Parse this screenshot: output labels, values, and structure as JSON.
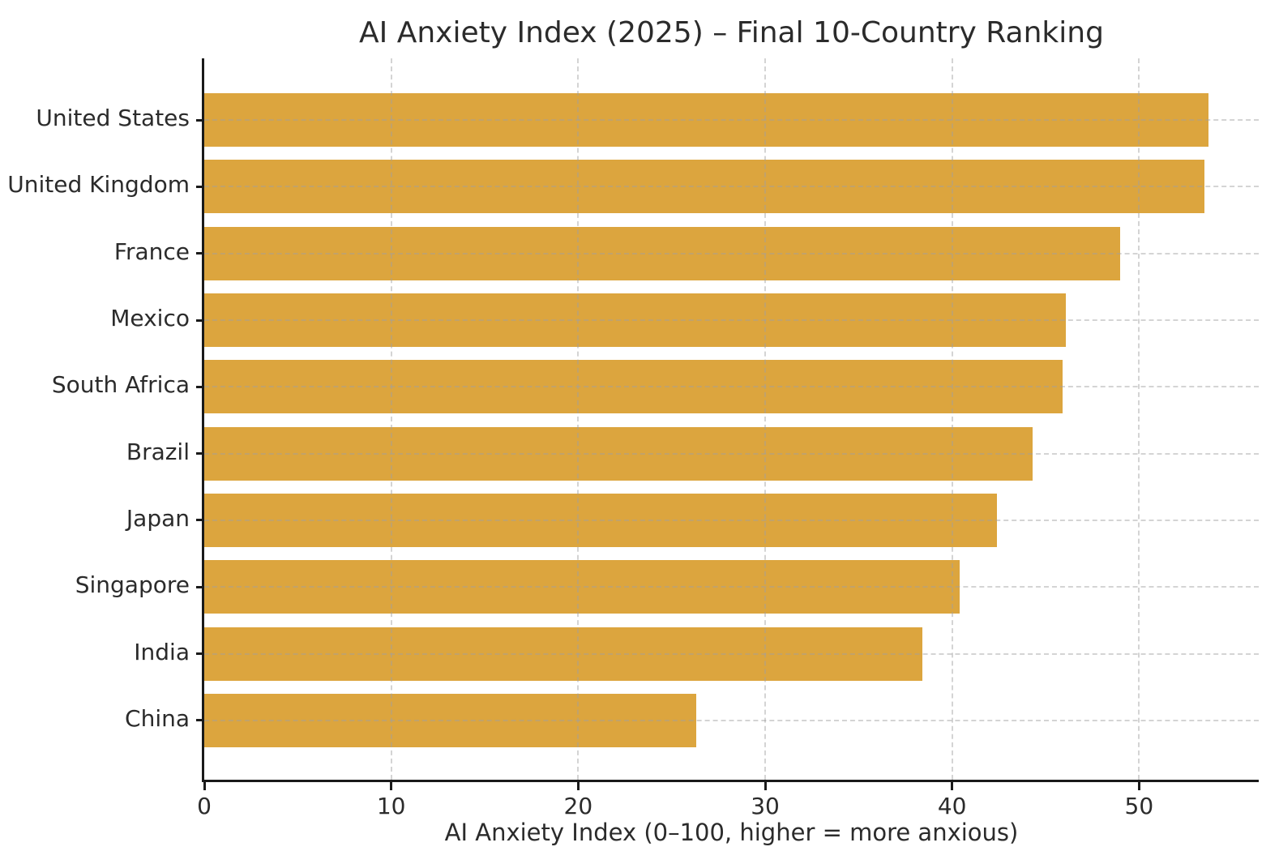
{
  "chart_data": {
    "type": "bar",
    "orientation": "horizontal",
    "title": "AI Anxiety Index (2025) – Final 10-Country Ranking",
    "xlabel": "AI Anxiety Index (0–100, higher = more anxious)",
    "ylabel": "",
    "categories": [
      "United States",
      "United Kingdom",
      "France",
      "Mexico",
      "South Africa",
      "Brazil",
      "Japan",
      "Singapore",
      "India",
      "China"
    ],
    "values": [
      53.7,
      53.5,
      49.0,
      46.1,
      45.9,
      44.3,
      42.4,
      40.4,
      38.4,
      26.3
    ],
    "xlim": [
      0,
      56.4
    ],
    "xticks": [
      0,
      10,
      20,
      30,
      40,
      50
    ],
    "grid": "dashed, vertical at x ticks and horizontal at category centers, drawn over bars",
    "legend": "none",
    "colors": {
      "bar": "#dca53e",
      "text": "#2b2b2b",
      "axis": "#1a1a1a",
      "grid": "#c8c8c8",
      "background": "#ffffff"
    }
  }
}
